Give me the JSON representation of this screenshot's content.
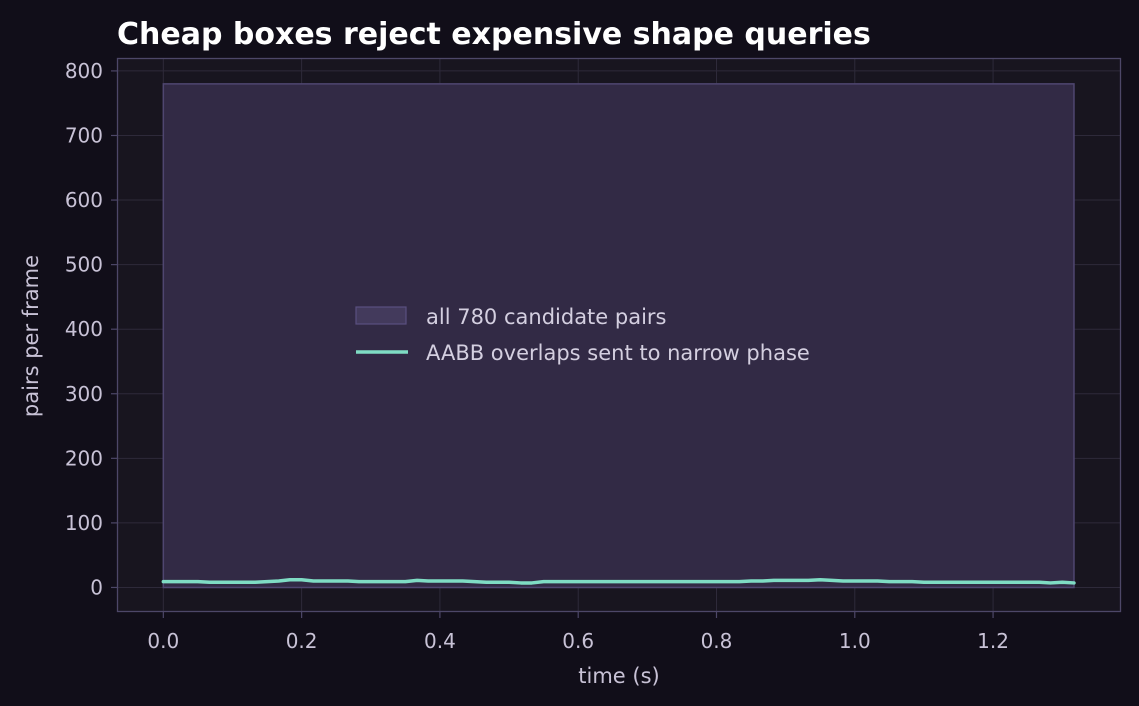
{
  "colors": {
    "page_bg": "#110e19",
    "plot_bg": "#18151f",
    "grid": "#2e2a3a",
    "frame": "#4d4768",
    "area_fill": "#322a45",
    "area_edge": "#4f4670",
    "line": "#7fdcc4",
    "text": "#c8c2d6",
    "title": "#ffffff"
  },
  "chart_data": {
    "type": "area",
    "title": "Cheap boxes reject expensive shape queries",
    "xlabel": "time (s)",
    "ylabel": "pairs per frame",
    "xlim": [
      -0.067,
      1.385
    ],
    "ylim": [
      -38,
      820
    ],
    "xticks": [
      "0.0",
      "0.2",
      "0.4",
      "0.6",
      "0.8",
      "1.0",
      "1.2"
    ],
    "yticks": [
      "0",
      "100",
      "200",
      "300",
      "400",
      "500",
      "600",
      "700",
      "800"
    ],
    "grid": true,
    "legend_position": "center",
    "series": [
      {
        "name": "all 780 candidate pairs",
        "kind": "area",
        "x": [
          0.0,
          1.317
        ],
        "values": [
          780,
          780
        ]
      },
      {
        "name": "AABB overlaps sent to narrow phase",
        "kind": "line",
        "x": [
          0.0,
          0.017,
          0.033,
          0.05,
          0.067,
          0.083,
          0.1,
          0.117,
          0.133,
          0.15,
          0.167,
          0.183,
          0.2,
          0.217,
          0.233,
          0.25,
          0.267,
          0.283,
          0.3,
          0.317,
          0.333,
          0.35,
          0.367,
          0.383,
          0.4,
          0.417,
          0.433,
          0.45,
          0.467,
          0.483,
          0.5,
          0.517,
          0.533,
          0.55,
          0.567,
          0.6,
          0.65,
          0.7,
          0.75,
          0.8,
          0.817,
          0.833,
          0.85,
          0.867,
          0.883,
          0.9,
          0.917,
          0.933,
          0.95,
          0.967,
          0.983,
          1.0,
          1.017,
          1.033,
          1.05,
          1.067,
          1.083,
          1.1,
          1.15,
          1.2,
          1.25,
          1.267,
          1.283,
          1.3,
          1.317
        ],
        "values": [
          9,
          9,
          9,
          9,
          8,
          8,
          8,
          8,
          8,
          9,
          10,
          12,
          12,
          10,
          10,
          10,
          10,
          9,
          9,
          9,
          9,
          9,
          11,
          10,
          10,
          10,
          10,
          9,
          8,
          8,
          8,
          7,
          7,
          9,
          9,
          9,
          9,
          9,
          9,
          9,
          9,
          9,
          10,
          10,
          11,
          11,
          11,
          11,
          12,
          11,
          10,
          10,
          10,
          10,
          9,
          9,
          9,
          8,
          8,
          8,
          8,
          8,
          7,
          8,
          7
        ]
      }
    ]
  }
}
